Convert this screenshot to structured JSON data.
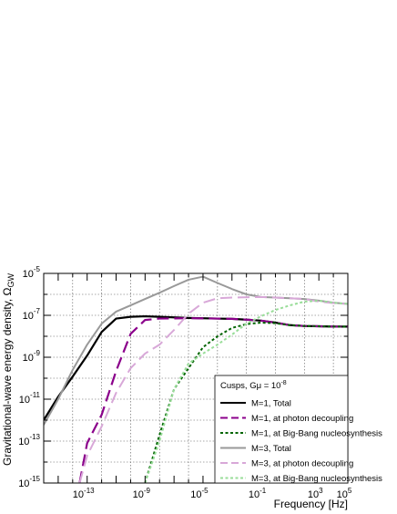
{
  "chart_data": {
    "type": "line",
    "xlabel": "Frequency [Hz]",
    "ylabel": "Gravitational-wave energy density, Ω",
    "ylabel_sub": "GW",
    "xscale": "log",
    "yscale": "log",
    "xlim": [
      1e-16,
      100000.0
    ],
    "ylim": [
      1e-15,
      1e-05
    ],
    "grid": true,
    "x_ticks": [
      {
        "value": 1e-13,
        "base": "10",
        "exp": "-13"
      },
      {
        "value": 1e-09,
        "base": "10",
        "exp": "-9"
      },
      {
        "value": 1e-05,
        "base": "10",
        "exp": "-5"
      },
      {
        "value": 0.1,
        "base": "10",
        "exp": "-1"
      },
      {
        "value": 1000.0,
        "base": "10",
        "exp": "3"
      },
      {
        "value": 100000.0,
        "base": "10",
        "exp": "5"
      }
    ],
    "y_ticks": [
      {
        "value": 1e-15,
        "base": "10",
        "exp": "-15"
      },
      {
        "value": 1e-13,
        "base": "10",
        "exp": "-13"
      },
      {
        "value": 1e-11,
        "base": "10",
        "exp": "-11"
      },
      {
        "value": 1e-09,
        "base": "10",
        "exp": "-9"
      },
      {
        "value": 1e-07,
        "base": "10",
        "exp": "-7"
      },
      {
        "value": 1e-05,
        "base": "10",
        "exp": "-5"
      }
    ],
    "legend": {
      "placement": "bottom-right",
      "title_prefix": "Cusps, Gμ = 10",
      "title_exp": "-8"
    },
    "series": [
      {
        "name": "M=1, Total",
        "color": "#000000",
        "dash": "solid",
        "points": [
          [
            1e-16,
            1e-12
          ],
          [
            1e-15,
            1.3e-11
          ],
          [
            1e-14,
            1.2e-10
          ],
          [
            1e-13,
            1.2e-09
          ],
          [
            1e-12,
            1.6e-08
          ],
          [
            1e-11,
            7e-08
          ],
          [
            1e-10,
            8.5e-08
          ],
          [
            1e-09,
            9e-08
          ],
          [
            1e-08,
            8.5e-08
          ],
          [
            1e-06,
            7.5e-08
          ],
          [
            0.0001,
            7e-08
          ],
          [
            0.001,
            6.8e-08
          ],
          [
            0.01,
            6.2e-08
          ],
          [
            0.1,
            5.6e-08
          ],
          [
            1,
            4.5e-08
          ],
          [
            10,
            3.4e-08
          ],
          [
            100,
            3.1e-08
          ],
          [
            1000,
            3e-08
          ],
          [
            10000.0,
            2.9e-08
          ],
          [
            100000.0,
            2.9e-08
          ]
        ]
      },
      {
        "name": "M=1, at photon decoupling",
        "color": "#8b008b",
        "dash": "long",
        "points": [
          [
            3e-14,
            1e-15
          ],
          [
            1e-13,
            8e-14
          ],
          [
            1e-12,
            1.8e-12
          ],
          [
            1e-11,
            2.2e-10
          ],
          [
            1e-10,
            1.3e-08
          ],
          [
            1e-09,
            6e-08
          ],
          [
            1e-08,
            7e-08
          ],
          [
            1e-06,
            7.3e-08
          ],
          [
            0.0001,
            7e-08
          ],
          [
            0.001,
            6.8e-08
          ],
          [
            0.01,
            6.2e-08
          ],
          [
            0.1,
            5.6e-08
          ],
          [
            1,
            4.5e-08
          ],
          [
            10,
            3.4e-08
          ],
          [
            100,
            3.1e-08
          ],
          [
            1000,
            3e-08
          ],
          [
            10000.0,
            2.9e-08
          ],
          [
            100000.0,
            2.9e-08
          ]
        ]
      },
      {
        "name": "M=1, at Big-Bang nucleosynthesis",
        "color": "#006400",
        "dash": "dotted",
        "points": [
          [
            1e-09,
            1e-15
          ],
          [
            1e-08,
            2e-13
          ],
          [
            1e-07,
            3e-11
          ],
          [
            1e-06,
            3e-10
          ],
          [
            1e-05,
            3e-09
          ],
          [
            0.0001,
            1e-08
          ],
          [
            0.001,
            2.5e-08
          ],
          [
            0.01,
            3.8e-08
          ],
          [
            0.1,
            4.5e-08
          ],
          [
            1,
            4.2e-08
          ],
          [
            10,
            3.4e-08
          ],
          [
            100,
            3.1e-08
          ],
          [
            1000,
            3e-08
          ],
          [
            10000.0,
            2.9e-08
          ],
          [
            100000.0,
            2.9e-08
          ]
        ]
      },
      {
        "name": "M=3, Total",
        "color": "#999999",
        "dash": "solid",
        "points": [
          [
            1e-16,
            6e-13
          ],
          [
            1e-15,
            1e-11
          ],
          [
            1e-14,
            2.5e-10
          ],
          [
            1e-13,
            4e-09
          ],
          [
            1e-12,
            4e-08
          ],
          [
            1e-11,
            1.5e-07
          ],
          [
            1e-10,
            3e-07
          ],
          [
            1e-09,
            6e-07
          ],
          [
            1e-08,
            1.2e-06
          ],
          [
            1e-07,
            2.5e-06
          ],
          [
            1e-06,
            5e-06
          ],
          [
            1e-05,
            7e-06
          ],
          [
            0.0001,
            3.5e-06
          ],
          [
            0.001,
            1.8e-06
          ],
          [
            0.01,
            1e-06
          ],
          [
            0.1,
            7.5e-07
          ],
          [
            1,
            7e-07
          ],
          [
            10,
            6.5e-07
          ],
          [
            100,
            6e-07
          ],
          [
            1000,
            5e-07
          ],
          [
            10000.0,
            4e-07
          ],
          [
            100000.0,
            3.5e-07
          ]
        ]
      },
      {
        "name": "M=3, at photon decoupling",
        "color": "#d8a8d8",
        "dash": "long",
        "points": [
          [
            3e-14,
            1e-15
          ],
          [
            1e-13,
            2e-14
          ],
          [
            1e-12,
            5e-13
          ],
          [
            1e-11,
            2e-11
          ],
          [
            1e-10,
            3e-10
          ],
          [
            1e-09,
            1.5e-09
          ],
          [
            1e-08,
            4e-09
          ],
          [
            1e-07,
            2e-08
          ],
          [
            1e-06,
            1.2e-07
          ],
          [
            1e-05,
            4e-07
          ],
          [
            0.0001,
            6.5e-07
          ],
          [
            0.001,
            7e-07
          ],
          [
            0.1,
            7.5e-07
          ],
          [
            1,
            7e-07
          ],
          [
            10,
            6.5e-07
          ],
          [
            100,
            6e-07
          ],
          [
            1000,
            4.5e-07
          ],
          [
            10000.0,
            3.8e-07
          ],
          [
            100000.0,
            3.5e-07
          ]
        ]
      },
      {
        "name": "M=3, at Big-Bang nucleosynthesis",
        "color": "#99dd99",
        "dash": "dotted",
        "points": [
          [
            1e-09,
            1e-15
          ],
          [
            1e-08,
            1e-13
          ],
          [
            1e-07,
            3e-11
          ],
          [
            1e-06,
            5e-10
          ],
          [
            1e-05,
            1.5e-09
          ],
          [
            0.0001,
            4e-09
          ],
          [
            0.001,
            1.2e-08
          ],
          [
            0.01,
            4e-08
          ],
          [
            0.1,
            9e-08
          ],
          [
            1,
            1.8e-07
          ],
          [
            10,
            3e-07
          ],
          [
            100,
            4.5e-07
          ],
          [
            1000,
            5e-07
          ],
          [
            10000.0,
            4e-07
          ],
          [
            100000.0,
            3.5e-07
          ]
        ]
      }
    ]
  }
}
